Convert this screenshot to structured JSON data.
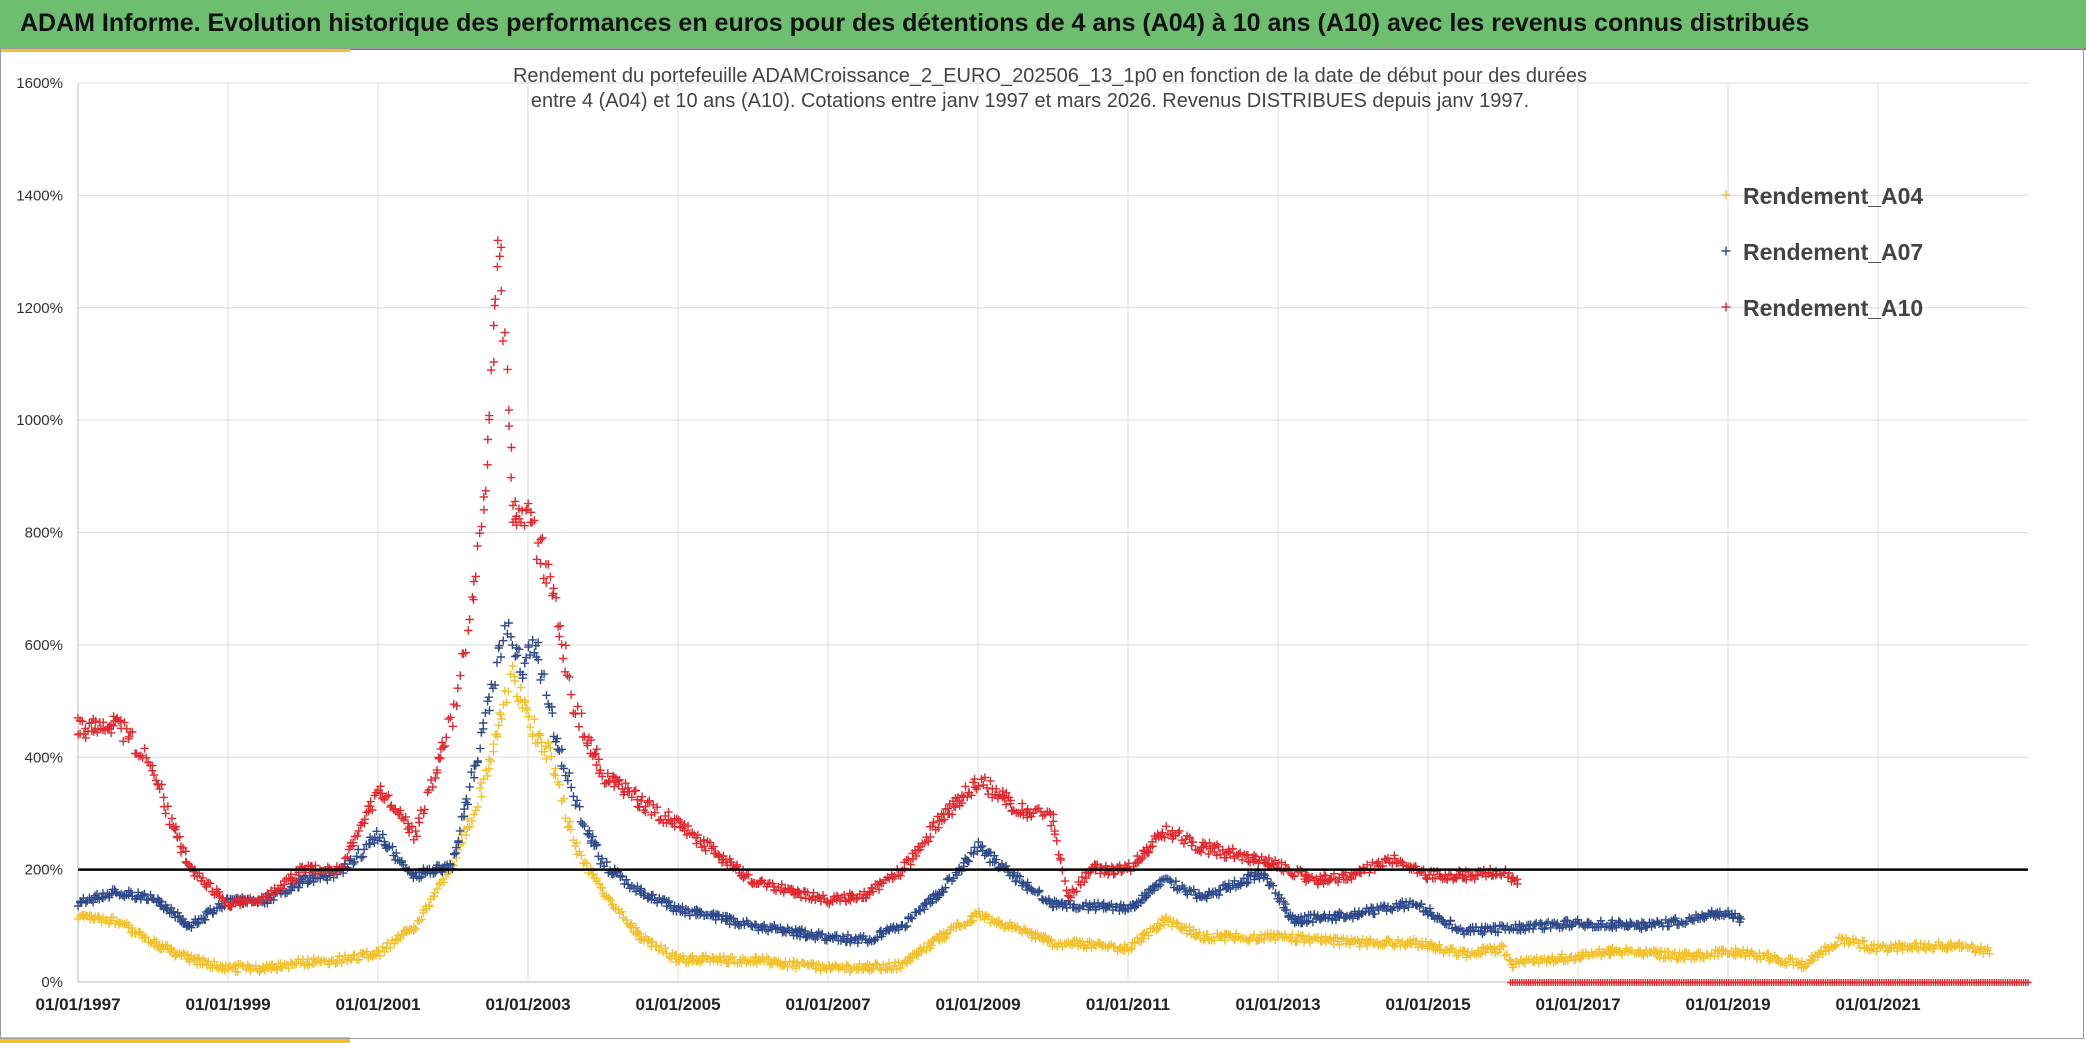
{
  "header": {
    "title": "ADAM Informe. Evolution historique des performances en euros pour des détentions de 4 ans (A04) à 10 ans (A10) avec les revenus connus distribués"
  },
  "chart_data": {
    "type": "scatter",
    "title_line1": "Rendement du portefeuille ADAMCroissance_2_EURO_202506_13_1p0  en fonction de la date de début pour des durées",
    "title_line2": "entre 4 (A04) et 10 ans (A10). Cotations entre janv 1997 et mars 2026. Revenus DISTRIBUES depuis janv 1997.",
    "xlabel": "",
    "ylabel": "",
    "xlim": [
      1997.0,
      2023.0
    ],
    "ylim": [
      0,
      1600
    ],
    "y_ticks": [
      0,
      200,
      400,
      600,
      800,
      1000,
      1200,
      1400,
      1600
    ],
    "y_tick_labels": [
      "0%",
      "200%",
      "400%",
      "600%",
      "800%",
      "1000%",
      "1200%",
      "1400%",
      "1600%"
    ],
    "x_ticks": [
      1997,
      1999,
      2001,
      2003,
      2005,
      2007,
      2009,
      2011,
      2013,
      2015,
      2017,
      2019,
      2021
    ],
    "x_tick_labels": [
      "01/01/1997",
      "01/01/1999",
      "01/01/2001",
      "01/01/2003",
      "01/01/2005",
      "01/01/2007",
      "01/01/2009",
      "01/01/2011",
      "01/01/2013",
      "01/01/2015",
      "01/01/2017",
      "01/01/2019",
      "01/01/2021"
    ],
    "reference_line": 200,
    "grid": true,
    "legend_position": "top-right",
    "series": [
      {
        "name": "Rendement_A04",
        "color": "#f2c12e",
        "end": 2022.5,
        "points": [
          [
            1997.0,
            115
          ],
          [
            1997.5,
            110
          ],
          [
            1998.0,
            70
          ],
          [
            1998.5,
            40
          ],
          [
            1999.0,
            25
          ],
          [
            1999.5,
            25
          ],
          [
            2000.0,
            35
          ],
          [
            2000.5,
            40
          ],
          [
            2001.0,
            50
          ],
          [
            2001.5,
            100
          ],
          [
            2002.0,
            210
          ],
          [
            2002.4,
            350
          ],
          [
            2002.6,
            460
          ],
          [
            2002.8,
            540
          ],
          [
            2003.0,
            470
          ],
          [
            2003.3,
            400
          ],
          [
            2003.6,
            250
          ],
          [
            2004.0,
            160
          ],
          [
            2004.5,
            80
          ],
          [
            2005.0,
            40
          ],
          [
            2006.0,
            40
          ],
          [
            2007.0,
            25
          ],
          [
            2007.5,
            25
          ],
          [
            2008.0,
            30
          ],
          [
            2008.5,
            80
          ],
          [
            2009.0,
            120
          ],
          [
            2009.5,
            95
          ],
          [
            2010.0,
            70
          ],
          [
            2011.0,
            60
          ],
          [
            2011.5,
            110
          ],
          [
            2012.0,
            80
          ],
          [
            2013.0,
            80
          ],
          [
            2014.0,
            70
          ],
          [
            2014.8,
            70
          ],
          [
            2015.5,
            50
          ],
          [
            2016.0,
            60
          ],
          [
            2016.1,
            30
          ],
          [
            2016.6,
            40
          ],
          [
            2017.5,
            55
          ],
          [
            2018.5,
            45
          ],
          [
            2019.0,
            55
          ],
          [
            2019.5,
            45
          ],
          [
            2020.0,
            30
          ],
          [
            2020.5,
            75
          ],
          [
            2021.0,
            60
          ],
          [
            2022.0,
            65
          ],
          [
            2022.5,
            55
          ]
        ]
      },
      {
        "name": "Rendement_A07",
        "color": "#2f4a8a",
        "end": 2019.2,
        "points": [
          [
            1997.0,
            140
          ],
          [
            1997.5,
            160
          ],
          [
            1998.0,
            150
          ],
          [
            1998.5,
            100
          ],
          [
            1999.0,
            145
          ],
          [
            1999.5,
            145
          ],
          [
            2000.0,
            180
          ],
          [
            2000.5,
            195
          ],
          [
            2001.0,
            260
          ],
          [
            2001.5,
            190
          ],
          [
            2002.0,
            210
          ],
          [
            2002.4,
            450
          ],
          [
            2002.7,
            630
          ],
          [
            2002.9,
            560
          ],
          [
            2003.1,
            600
          ],
          [
            2003.4,
            420
          ],
          [
            2003.7,
            300
          ],
          [
            2004.0,
            210
          ],
          [
            2004.5,
            160
          ],
          [
            2005.0,
            130
          ],
          [
            2006.0,
            100
          ],
          [
            2007.0,
            80
          ],
          [
            2007.5,
            75
          ],
          [
            2008.0,
            100
          ],
          [
            2008.5,
            160
          ],
          [
            2009.0,
            240
          ],
          [
            2009.5,
            185
          ],
          [
            2010.0,
            140
          ],
          [
            2011.0,
            130
          ],
          [
            2011.5,
            180
          ],
          [
            2012.0,
            150
          ],
          [
            2012.8,
            195
          ],
          [
            2013.2,
            110
          ],
          [
            2014.0,
            120
          ],
          [
            2014.8,
            140
          ],
          [
            2015.5,
            90
          ],
          [
            2016.0,
            95
          ],
          [
            2017.0,
            105
          ],
          [
            2018.0,
            100
          ],
          [
            2019.0,
            125
          ],
          [
            2019.2,
            110
          ]
        ]
      },
      {
        "name": "Rendement_A10",
        "color": "#e0282e",
        "end": 2016.2,
        "points": [
          [
            1997.0,
            450
          ],
          [
            1997.5,
            460
          ],
          [
            1998.0,
            390
          ],
          [
            1998.2,
            300
          ],
          [
            1998.5,
            200
          ],
          [
            1999.0,
            140
          ],
          [
            1999.5,
            150
          ],
          [
            2000.0,
            200
          ],
          [
            2000.5,
            200
          ],
          [
            2001.0,
            340
          ],
          [
            2001.5,
            260
          ],
          [
            2002.0,
            480
          ],
          [
            2002.3,
            700
          ],
          [
            2002.5,
            1000
          ],
          [
            2002.6,
            1360
          ],
          [
            2002.8,
            850
          ],
          [
            2003.0,
            820
          ],
          [
            2003.3,
            720
          ],
          [
            2003.6,
            500
          ],
          [
            2004.0,
            370
          ],
          [
            2004.5,
            320
          ],
          [
            2005.0,
            280
          ],
          [
            2005.5,
            230
          ],
          [
            2006.0,
            180
          ],
          [
            2007.0,
            145
          ],
          [
            2007.5,
            155
          ],
          [
            2008.0,
            200
          ],
          [
            2008.5,
            290
          ],
          [
            2009.0,
            360
          ],
          [
            2009.5,
            310
          ],
          [
            2010.0,
            290
          ],
          [
            2010.2,
            150
          ],
          [
            2010.5,
            200
          ],
          [
            2011.0,
            200
          ],
          [
            2011.5,
            270
          ],
          [
            2012.0,
            240
          ],
          [
            2013.0,
            210
          ],
          [
            2013.5,
            180
          ],
          [
            2014.0,
            190
          ],
          [
            2014.5,
            220
          ],
          [
            2015.0,
            190
          ],
          [
            2015.5,
            190
          ],
          [
            2016.0,
            195
          ],
          [
            2016.2,
            180
          ]
        ]
      }
    ],
    "zero_band": {
      "from": 2016.1,
      "to": 2023.0,
      "value": 0,
      "series": "Rendement_A10"
    }
  }
}
